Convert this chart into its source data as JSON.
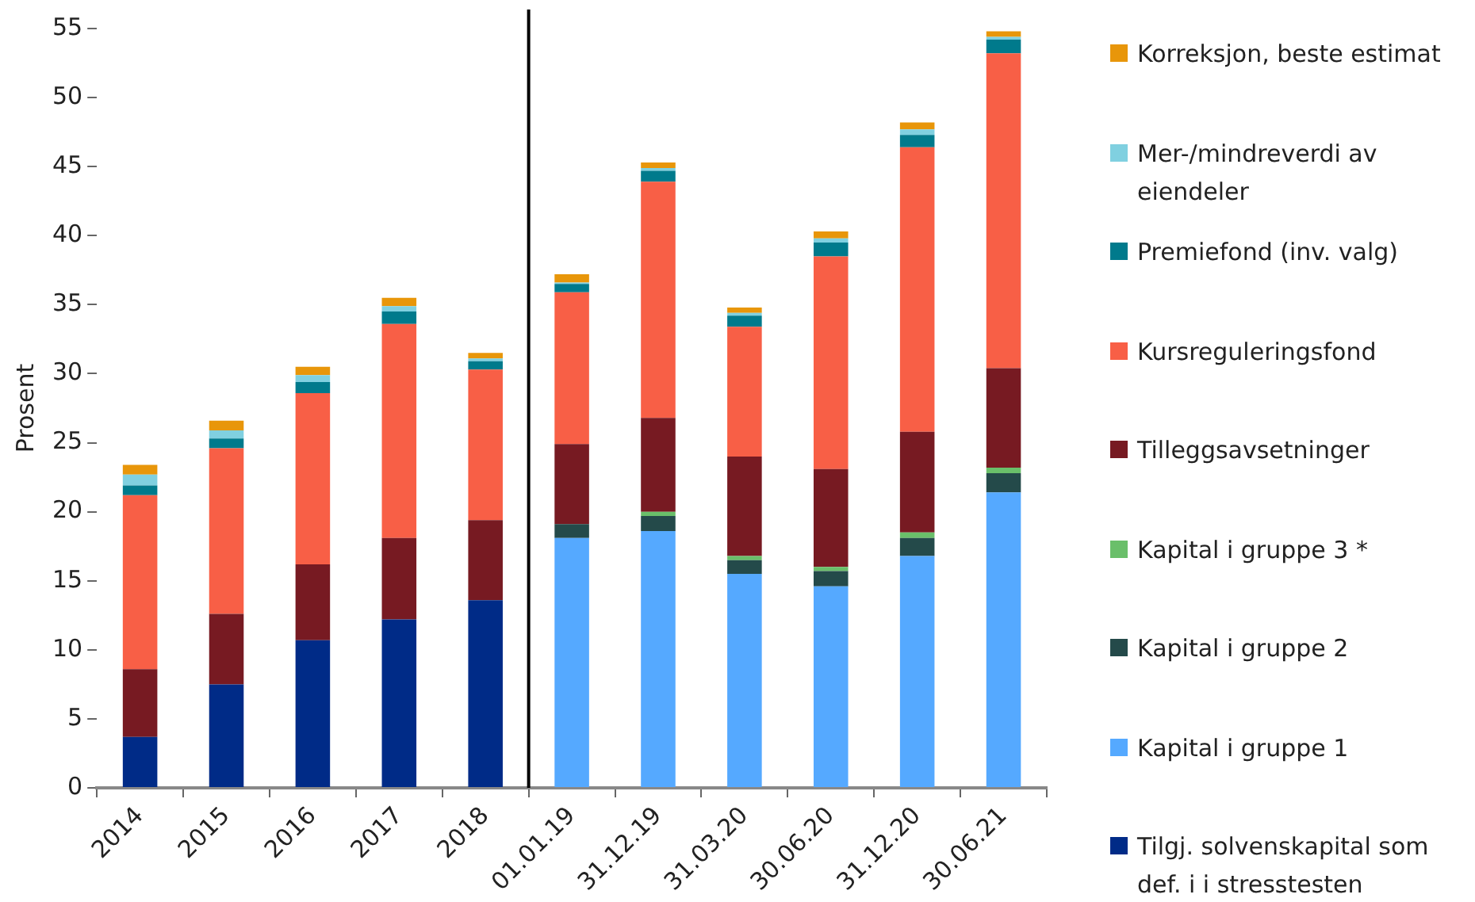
{
  "chart_data": {
    "type": "bar",
    "stacked": true,
    "ylabel": "Prosent",
    "categories": [
      "2014",
      "2015",
      "2016",
      "2017",
      "2018",
      "01.01.19",
      "31.12.19",
      "31.03.20",
      "30.06.20",
      "31.12.20",
      "30.06.21"
    ],
    "ylim": [
      0,
      55
    ],
    "yticks": [
      0,
      5,
      10,
      15,
      20,
      25,
      30,
      35,
      40,
      45,
      50,
      55
    ],
    "grid": false,
    "legend": "right",
    "series": [
      {
        "name": "Tilgj. solvenskapital som def. i  i stresstesten",
        "color": "#002b87",
        "values": [
          3.7,
          7.5,
          10.7,
          12.2,
          13.6,
          null,
          null,
          null,
          null,
          null,
          null
        ]
      },
      {
        "name": "Kapital i gruppe 1",
        "color": "#55a9ff",
        "values": [
          null,
          null,
          null,
          null,
          null,
          18.1,
          18.6,
          15.5,
          14.6,
          16.8,
          21.4
        ]
      },
      {
        "name": "Kapital i gruppe 2",
        "color": "#244a4a",
        "values": [
          null,
          null,
          null,
          null,
          null,
          1.0,
          1.1,
          1.0,
          1.1,
          1.3,
          1.4
        ]
      },
      {
        "name": "Kapital i gruppe 3 *",
        "color": "#6abf6a",
        "values": [
          null,
          null,
          null,
          null,
          null,
          0,
          0.3,
          0.3,
          0.3,
          0.4,
          0.4
        ]
      },
      {
        "name": "Tilleggsavsetninger",
        "color": "#771a22",
        "values": [
          4.9,
          5.1,
          5.5,
          5.9,
          5.8,
          5.8,
          6.8,
          7.2,
          7.1,
          7.3,
          7.2
        ]
      },
      {
        "name": "Kursreguleringsfond",
        "color": "#f85f46",
        "values": [
          12.6,
          12.0,
          12.4,
          15.5,
          10.9,
          11.0,
          17.1,
          9.4,
          15.4,
          20.6,
          22.8
        ]
      },
      {
        "name": "Premiefond (inv. valg)",
        "color": "#007a8c",
        "values": [
          0.7,
          0.7,
          0.8,
          0.9,
          0.6,
          0.6,
          0.8,
          0.8,
          1.0,
          0.9,
          1.0
        ]
      },
      {
        "name": "Mer-/mindreverdi  av eiendeler",
        "color": "#80d0e0",
        "values": [
          0.8,
          0.6,
          0.5,
          0.4,
          0.2,
          0.1,
          0.2,
          0.2,
          0.3,
          0.4,
          0.2
        ]
      },
      {
        "name": "Korreksjon, beste estimat",
        "color": "#e8960a",
        "values": [
          0.7,
          0.7,
          0.6,
          0.6,
          0.4,
          0.6,
          0.4,
          0.4,
          0.5,
          0.5,
          0.4
        ]
      }
    ]
  }
}
